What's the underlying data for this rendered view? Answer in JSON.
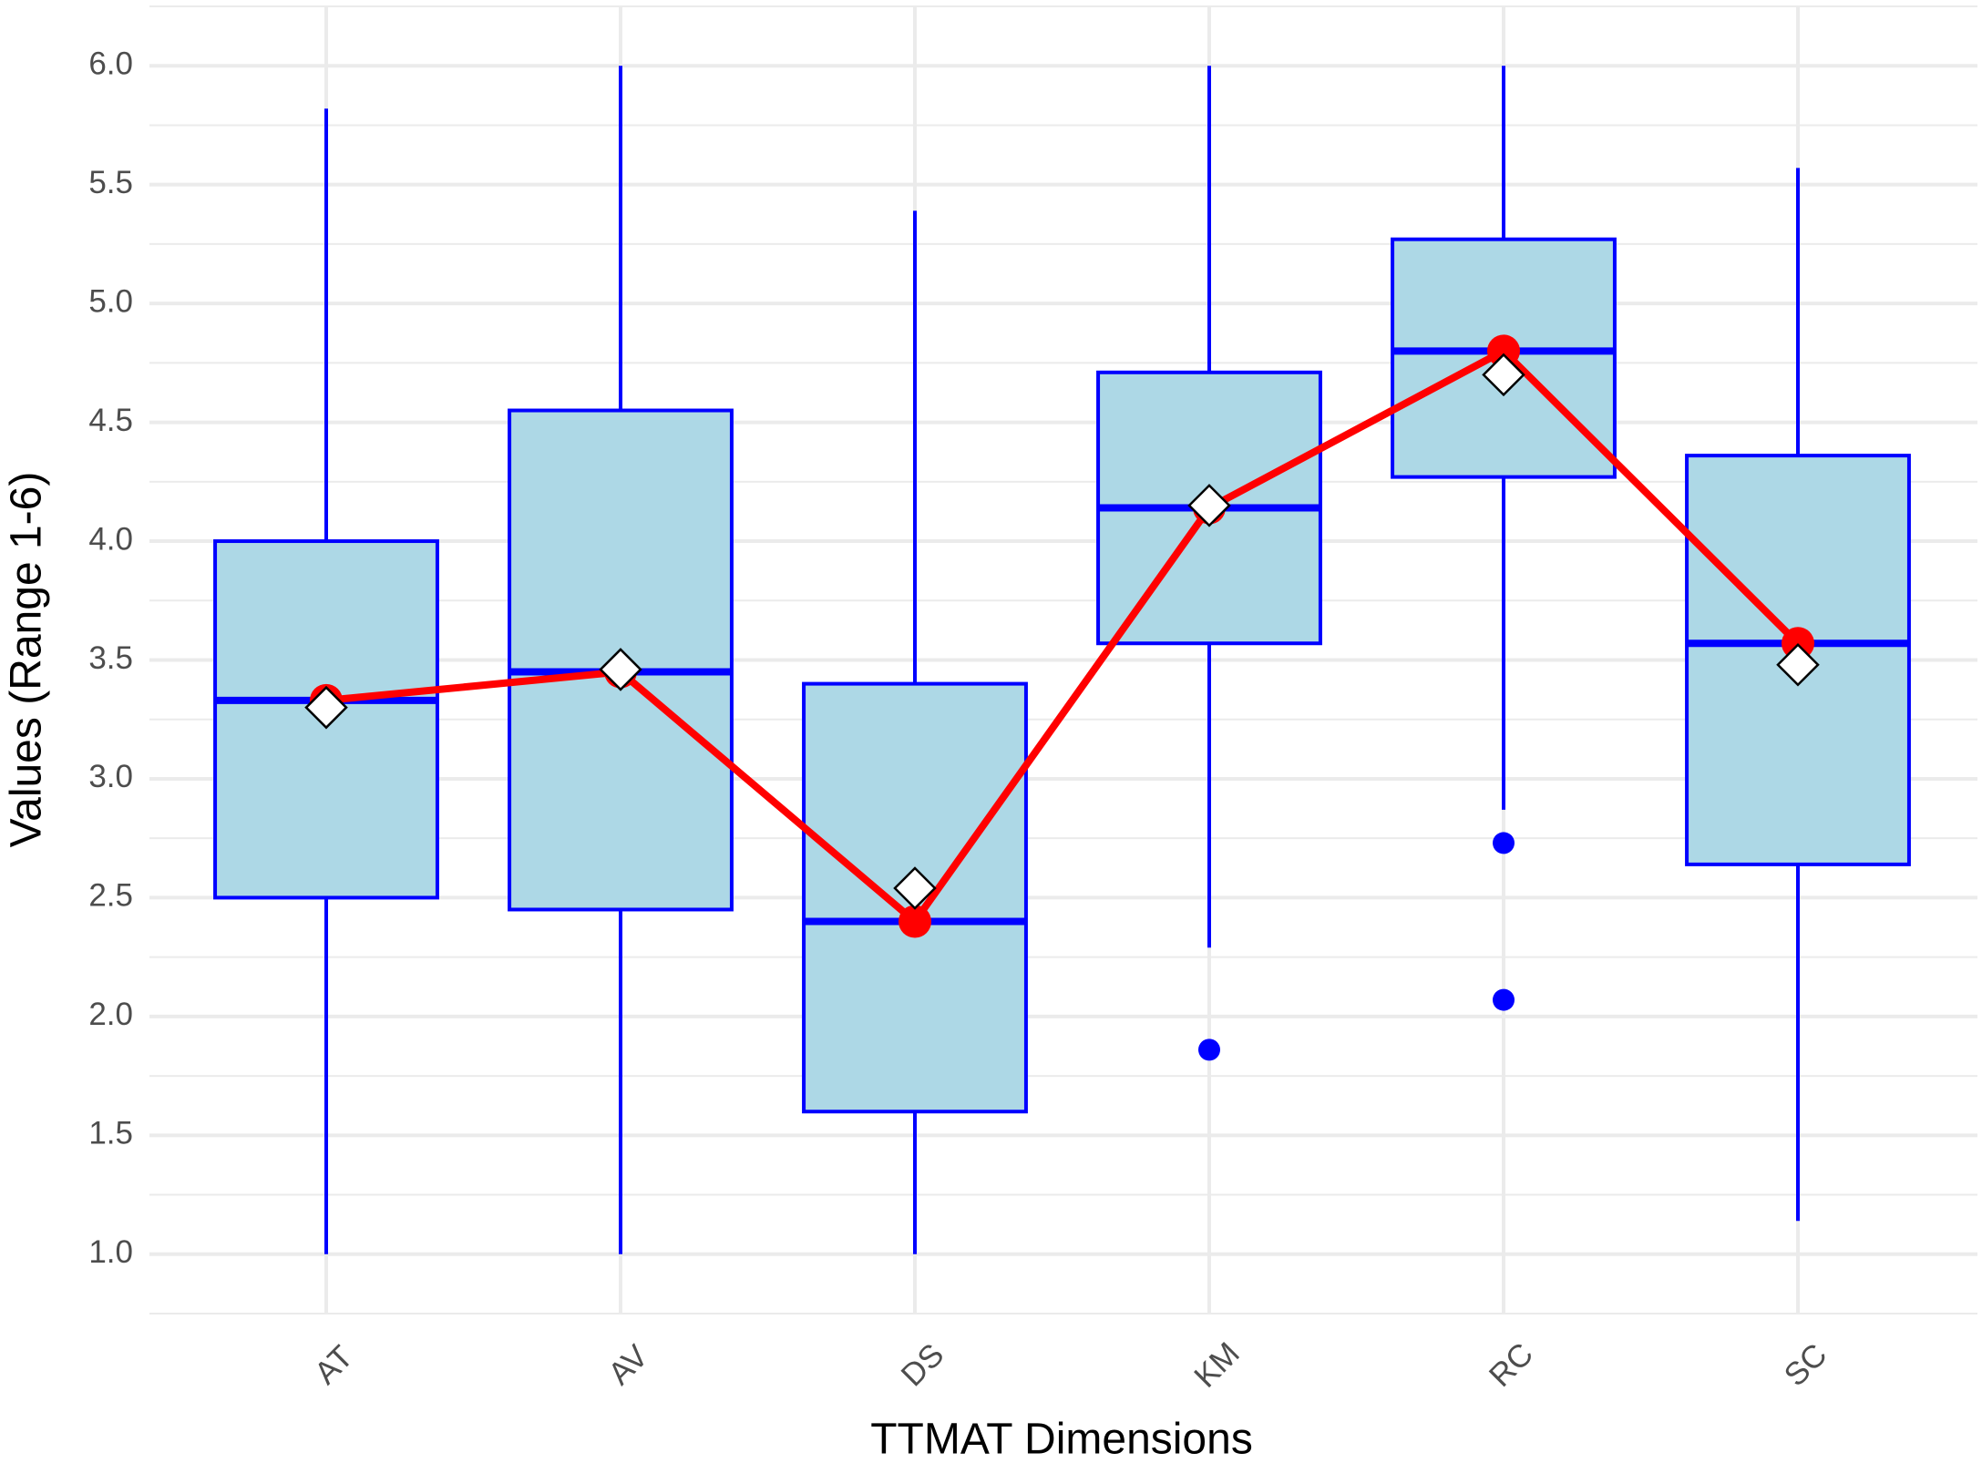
{
  "chart_data": {
    "type": "boxplot",
    "x_label": "TTMAT Dimensions",
    "y_label": "Values (Range 1-6)",
    "categories": [
      "AT",
      "AV",
      "DS",
      "KM",
      "RC",
      "SC"
    ],
    "boxes": [
      {
        "low": 1.0,
        "q1": 2.5,
        "median": 3.33,
        "q3": 4.0,
        "high": 5.82,
        "outliers": []
      },
      {
        "low": 1.0,
        "q1": 2.45,
        "median": 3.45,
        "q3": 4.55,
        "high": 6.0,
        "outliers": []
      },
      {
        "low": 1.0,
        "q1": 1.6,
        "median": 2.4,
        "q3": 3.4,
        "high": 5.39,
        "outliers": []
      },
      {
        "low": 2.29,
        "q1": 3.57,
        "median": 4.14,
        "q3": 4.71,
        "high": 6.0,
        "outliers": [
          1.86
        ]
      },
      {
        "low": 2.87,
        "q1": 4.27,
        "median": 4.8,
        "q3": 5.27,
        "high": 6.0,
        "outliers": [
          2.73,
          2.07
        ]
      },
      {
        "low": 1.14,
        "q1": 2.64,
        "median": 3.57,
        "q3": 4.36,
        "high": 5.57,
        "outliers": []
      }
    ],
    "means": [
      3.3,
      3.46,
      2.54,
      4.15,
      4.7,
      3.48
    ],
    "box_fill": "#add8e6",
    "box_color": "#0000ff",
    "median_line_color": "#ff0000",
    "mean_marker_color": "#ffffff",
    "ylim": [
      0.75,
      6.25
    ],
    "yticks": [
      {
        "value": 1,
        "label": "1.0"
      },
      1.5,
      {
        "value": 2,
        "label": "2.0"
      },
      2.5,
      {
        "value": 3,
        "label": "3.0"
      },
      3.5,
      {
        "value": 4,
        "label": "4.0"
      },
      4.5,
      {
        "value": 5,
        "label": "5.0"
      },
      5.5,
      {
        "value": 6,
        "label": "6.0"
      }
    ],
    "minor_yticks": [
      0.75,
      1.25,
      1.75,
      2.25,
      2.75,
      3.25,
      3.75,
      4.25,
      4.75,
      5.25,
      5.75,
      6.25
    ],
    "grid": true
  }
}
